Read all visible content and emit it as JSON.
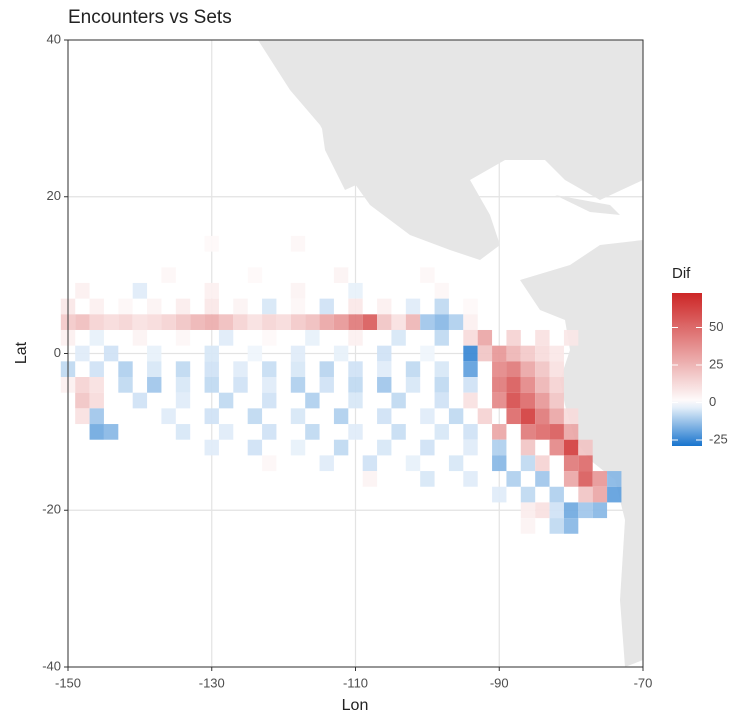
{
  "chart_data": {
    "type": "heatmap",
    "title": "Encounters vs Sets",
    "x_label": "Lon",
    "y_label": "Lat",
    "legend_title": "Dif",
    "xlim": [
      -150,
      -70
    ],
    "ylim": [
      -40,
      40
    ],
    "xticks": [
      -150,
      -130,
      -110,
      -90,
      -70
    ],
    "yticks": [
      -40,
      -20,
      0,
      20,
      40
    ],
    "grid": true,
    "colorscale": {
      "low": "#1874cd",
      "mid": "#ffffff",
      "high": "#cd2626",
      "midpoint": 0,
      "limits": [
        -29,
        73
      ],
      "ticks": [
        -25,
        0,
        25,
        50
      ]
    },
    "rows": [
      {
        "lat": 14,
        "lon": [
          -130,
          -118
        ],
        "values": [
          2,
          3
        ]
      },
      {
        "lat": 10,
        "lon": [
          -136,
          -124,
          -112,
          -100
        ],
        "values": [
          3,
          2,
          4,
          3
        ]
      },
      {
        "lat": 8,
        "lon": [
          -148,
          -140,
          -130,
          -118,
          -110,
          -98
        ],
        "values": [
          5,
          -4,
          5,
          4,
          -3,
          3
        ]
      },
      {
        "lat": 6,
        "lon": [
          -150,
          -146,
          -142,
          -138,
          -134,
          -130,
          -126,
          -122,
          -118,
          -114,
          -110,
          -106,
          -102,
          -98,
          -94
        ],
        "values": [
          8,
          5,
          3,
          4,
          6,
          8,
          4,
          -5,
          3,
          -6,
          8,
          5,
          -4,
          -8,
          2
        ]
      },
      {
        "lat": 4,
        "lon": [
          -150,
          -148,
          -146,
          -144,
          -142,
          -140,
          -138,
          -136,
          -134,
          -132,
          -130,
          -128,
          -126,
          -124,
          -122,
          -120,
          -118,
          -116,
          -114,
          -112,
          -110,
          -108,
          -106,
          -104,
          -102,
          -100,
          -98,
          -96,
          -94
        ],
        "values": [
          18,
          22,
          15,
          12,
          14,
          10,
          12,
          15,
          20,
          25,
          28,
          22,
          15,
          10,
          14,
          12,
          18,
          22,
          30,
          35,
          45,
          55,
          20,
          10,
          25,
          -12,
          -15,
          -10,
          5
        ]
      },
      {
        "lat": 2,
        "lon": [
          -150,
          -146,
          -140,
          -134,
          -128,
          -122,
          -116,
          -110,
          -104,
          -98,
          -94,
          -92,
          -88,
          -84,
          -80
        ],
        "values": [
          5,
          -3,
          4,
          3,
          -4,
          2,
          -3,
          5,
          -5,
          -8,
          12,
          30,
          15,
          10,
          8
        ]
      },
      {
        "lat": 0,
        "lon": [
          -148,
          -144,
          -138,
          -130,
          -124,
          -118,
          -112,
          -106,
          -100,
          -94,
          -92,
          -90,
          -88,
          -86,
          -84,
          -82
        ],
        "values": [
          -4,
          -6,
          -3,
          -5,
          -2,
          -4,
          -3,
          -6,
          -2,
          -25,
          20,
          35,
          25,
          18,
          12,
          8
        ]
      },
      {
        "lat": -2,
        "lon": [
          -150,
          -146,
          -142,
          -138,
          -134,
          -130,
          -126,
          -122,
          -118,
          -114,
          -110,
          -106,
          -102,
          -98,
          -94,
          -90,
          -88,
          -86,
          -84,
          -82
        ],
        "values": [
          -8,
          -6,
          -10,
          -5,
          -8,
          -6,
          -4,
          -7,
          -5,
          -9,
          -6,
          -4,
          -8,
          -5,
          -20,
          40,
          45,
          30,
          20,
          10
        ]
      },
      {
        "lat": -4,
        "lon": [
          -150,
          -148,
          -146,
          -142,
          -138,
          -134,
          -130,
          -126,
          -122,
          -118,
          -114,
          -110,
          -106,
          -102,
          -98,
          -94,
          -90,
          -88,
          -86,
          -84,
          -82
        ],
        "values": [
          5,
          15,
          10,
          -8,
          -12,
          -5,
          -8,
          -6,
          -4,
          -10,
          -6,
          -8,
          -12,
          -5,
          -8,
          -6,
          45,
          55,
          40,
          25,
          15
        ]
      },
      {
        "lat": -6,
        "lon": [
          -148,
          -146,
          -140,
          -134,
          -128,
          -122,
          -116,
          -110,
          -104,
          -98,
          -94,
          -90,
          -88,
          -86,
          -84,
          -82
        ],
        "values": [
          20,
          12,
          -6,
          -4,
          -8,
          -6,
          -10,
          -5,
          -8,
          -6,
          10,
          40,
          60,
          50,
          35,
          20
        ]
      },
      {
        "lat": -8,
        "lon": [
          -148,
          -146,
          -136,
          -130,
          -124,
          -118,
          -112,
          -106,
          -100,
          -96,
          -92,
          -88,
          -86,
          -84,
          -82,
          -80
        ],
        "values": [
          10,
          -12,
          -4,
          -6,
          -8,
          -5,
          -10,
          -6,
          -4,
          -8,
          15,
          50,
          65,
          45,
          30,
          12
        ]
      },
      {
        "lat": -10,
        "lon": [
          -146,
          -144,
          -134,
          -128,
          -122,
          -116,
          -110,
          -104,
          -98,
          -94,
          -90,
          -86,
          -84,
          -82,
          -80
        ],
        "values": [
          -18,
          -15,
          -5,
          -4,
          -6,
          -8,
          -4,
          -7,
          -5,
          -6,
          30,
          45,
          50,
          55,
          30
        ]
      },
      {
        "lat": -12,
        "lon": [
          -130,
          -124,
          -118,
          -112,
          -106,
          -100,
          -94,
          -90,
          -86,
          -82,
          -80,
          -78
        ],
        "values": [
          -4,
          -6,
          -3,
          -8,
          -5,
          -6,
          -4,
          -10,
          20,
          40,
          65,
          20
        ]
      },
      {
        "lat": -14,
        "lon": [
          -122,
          -114,
          -108,
          -102,
          -96,
          -90,
          -86,
          -84,
          -80,
          -78
        ],
        "values": [
          3,
          -4,
          -6,
          -3,
          -5,
          -15,
          -8,
          15,
          45,
          50
        ]
      },
      {
        "lat": -16,
        "lon": [
          -108,
          -100,
          -94,
          -88,
          -84,
          -80,
          -78,
          -76,
          -74
        ],
        "values": [
          4,
          -5,
          -4,
          -10,
          -12,
          30,
          55,
          35,
          -15
        ]
      },
      {
        "lat": -18,
        "lon": [
          -90,
          -86,
          -82,
          -78,
          -76,
          -74
        ],
        "values": [
          -4,
          -8,
          -10,
          20,
          30,
          -20
        ]
      },
      {
        "lat": -20,
        "lon": [
          -86,
          -84,
          -82,
          -80,
          -78,
          -76
        ],
        "values": [
          6,
          10,
          -6,
          -18,
          -12,
          -15
        ]
      },
      {
        "lat": -22,
        "lon": [
          -86,
          -82,
          -80
        ],
        "values": [
          4,
          -8,
          -15
        ]
      }
    ]
  }
}
